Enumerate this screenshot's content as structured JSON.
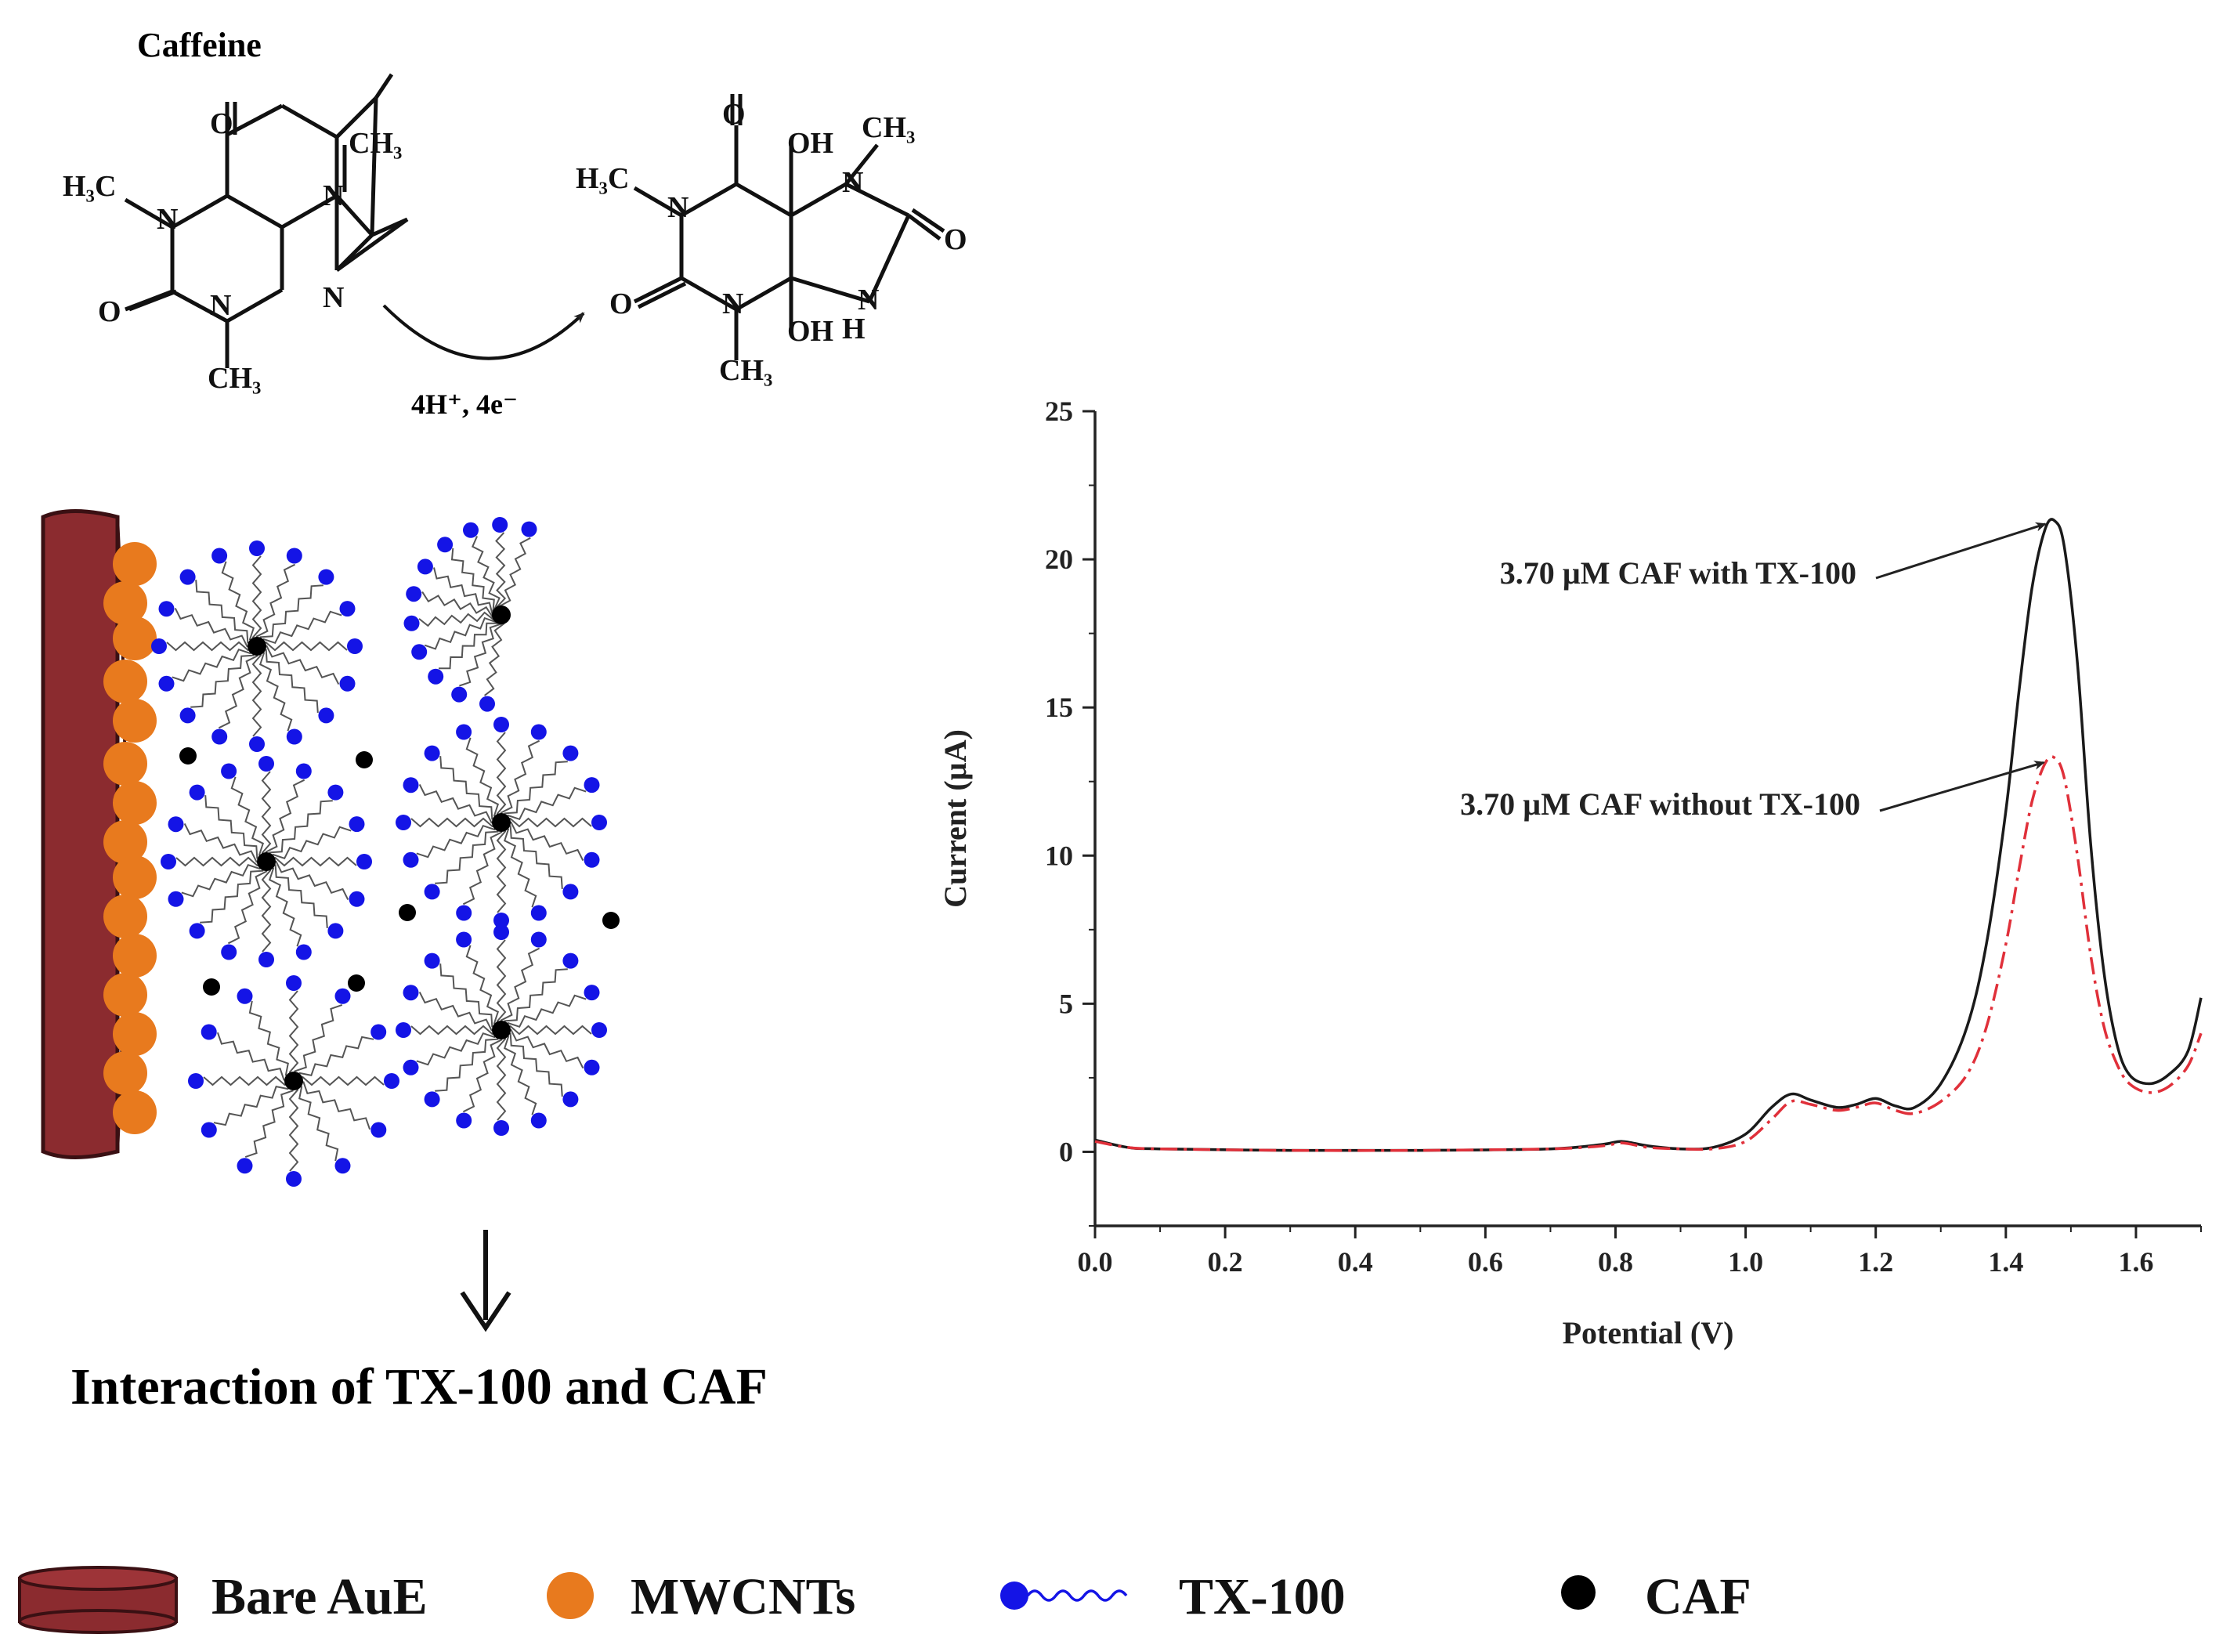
{
  "scheme": {
    "molecule_name": "Caffeine",
    "reaction_condition": "4H⁺, 4e⁻",
    "atoms": {
      "O": "O",
      "N": "N",
      "H3C": "H₃C",
      "CH3": "CH₃",
      "OH": "OH",
      "H": "H"
    }
  },
  "electrode_illustration": {
    "caption": "Interaction of TX-100 and CAF"
  },
  "legend": {
    "items": [
      {
        "label": "Bare AuE",
        "color": "#8b2b2f"
      },
      {
        "label": "MWCNTs",
        "color": "#e87a1e"
      },
      {
        "label": "TX-100",
        "color": "#1414e6"
      },
      {
        "label": "CAF",
        "color": "#000000"
      }
    ]
  },
  "chart_data": {
    "type": "line",
    "xlabel": "Potential (V)",
    "ylabel": "Current (µA)",
    "xlim": [
      0.0,
      1.7
    ],
    "ylim": [
      -2.5,
      25
    ],
    "xticks": [
      0.0,
      0.2,
      0.4,
      0.6,
      0.8,
      1.0,
      1.2,
      1.4,
      1.6
    ],
    "xtick_labels": [
      "0.0",
      "0.2",
      "0.4",
      "0.6",
      "0.8",
      "1.0",
      "1.2",
      "1.4",
      "1.6"
    ],
    "yticks": [
      0,
      5,
      10,
      15,
      20,
      25
    ],
    "ytick_labels": [
      "0",
      "5",
      "10",
      "15",
      "20",
      "25"
    ],
    "series": [
      {
        "name": "3.70 µM CAF with TX-100",
        "color": "#1a1a1a",
        "style": "solid",
        "x": [
          0.0,
          0.05,
          0.1,
          0.3,
          0.5,
          0.7,
          0.78,
          0.81,
          0.85,
          0.9,
          0.95,
          1.0,
          1.04,
          1.07,
          1.1,
          1.14,
          1.17,
          1.2,
          1.23,
          1.26,
          1.3,
          1.34,
          1.37,
          1.4,
          1.42,
          1.44,
          1.46,
          1.475,
          1.49,
          1.51,
          1.53,
          1.55,
          1.57,
          1.59,
          1.62,
          1.65,
          1.68,
          1.7
        ],
        "y": [
          0.4,
          0.15,
          0.1,
          0.05,
          0.05,
          0.1,
          0.25,
          0.35,
          0.2,
          0.1,
          0.15,
          0.6,
          1.5,
          1.95,
          1.75,
          1.5,
          1.6,
          1.8,
          1.55,
          1.5,
          2.3,
          4.2,
          7.0,
          11.5,
          15.5,
          19.0,
          21.0,
          21.3,
          20.4,
          16.5,
          10.5,
          6.2,
          3.7,
          2.6,
          2.3,
          2.6,
          3.4,
          5.2
        ]
      },
      {
        "name": "3.70 µM CAF without TX-100",
        "color": "#e0303a",
        "style": "dashdot",
        "x": [
          0.0,
          0.05,
          0.1,
          0.3,
          0.5,
          0.7,
          0.78,
          0.81,
          0.85,
          0.9,
          0.95,
          1.0,
          1.04,
          1.07,
          1.1,
          1.14,
          1.17,
          1.2,
          1.23,
          1.26,
          1.3,
          1.34,
          1.37,
          1.4,
          1.42,
          1.44,
          1.46,
          1.475,
          1.49,
          1.51,
          1.53,
          1.55,
          1.57,
          1.59,
          1.62,
          1.65,
          1.68,
          1.7
        ],
        "y": [
          0.35,
          0.15,
          0.1,
          0.05,
          0.05,
          0.1,
          0.2,
          0.3,
          0.15,
          0.1,
          0.1,
          0.35,
          1.1,
          1.7,
          1.6,
          1.4,
          1.5,
          1.65,
          1.4,
          1.3,
          1.7,
          2.6,
          4.2,
          7.0,
          9.5,
          11.8,
          13.1,
          13.3,
          12.6,
          10.0,
          6.7,
          4.3,
          3.0,
          2.3,
          2.0,
          2.2,
          2.9,
          4.0
        ]
      }
    ]
  }
}
